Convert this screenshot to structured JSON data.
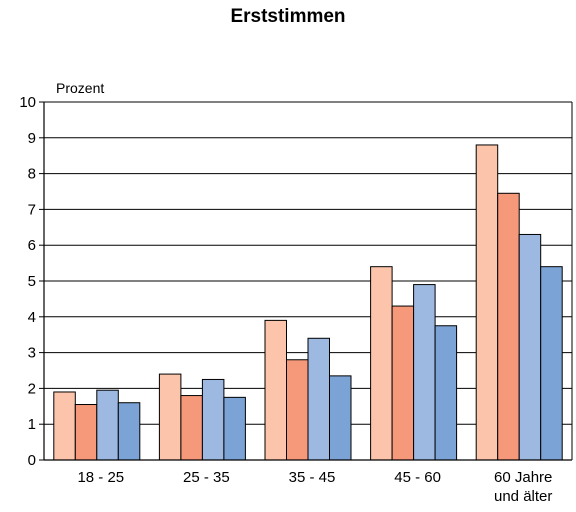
{
  "chart_data": {
    "type": "bar",
    "title": "Erststimmen",
    "ylabel": "Prozent",
    "xlabel": "",
    "ylim": [
      0,
      10
    ],
    "yticks": [
      0,
      1,
      2,
      3,
      4,
      5,
      6,
      7,
      8,
      9,
      10
    ],
    "grid": true,
    "legend": "none",
    "categories": [
      [
        "18 - 25"
      ],
      [
        "25 - 35"
      ],
      [
        "35 - 45"
      ],
      [
        "45 - 60"
      ],
      [
        "60 Jahre",
        "und älter"
      ]
    ],
    "series": [
      {
        "color": "#fcc5ab",
        "values": [
          1.9,
          2.4,
          3.9,
          5.4,
          8.8
        ]
      },
      {
        "color": "#f5997a",
        "values": [
          1.55,
          1.8,
          2.8,
          4.3,
          7.45
        ]
      },
      {
        "color": "#9db9e2",
        "values": [
          1.95,
          2.25,
          3.4,
          4.9,
          6.3
        ]
      },
      {
        "color": "#7ba3d6",
        "values": [
          1.6,
          1.75,
          2.35,
          3.75,
          5.4
        ]
      }
    ]
  }
}
